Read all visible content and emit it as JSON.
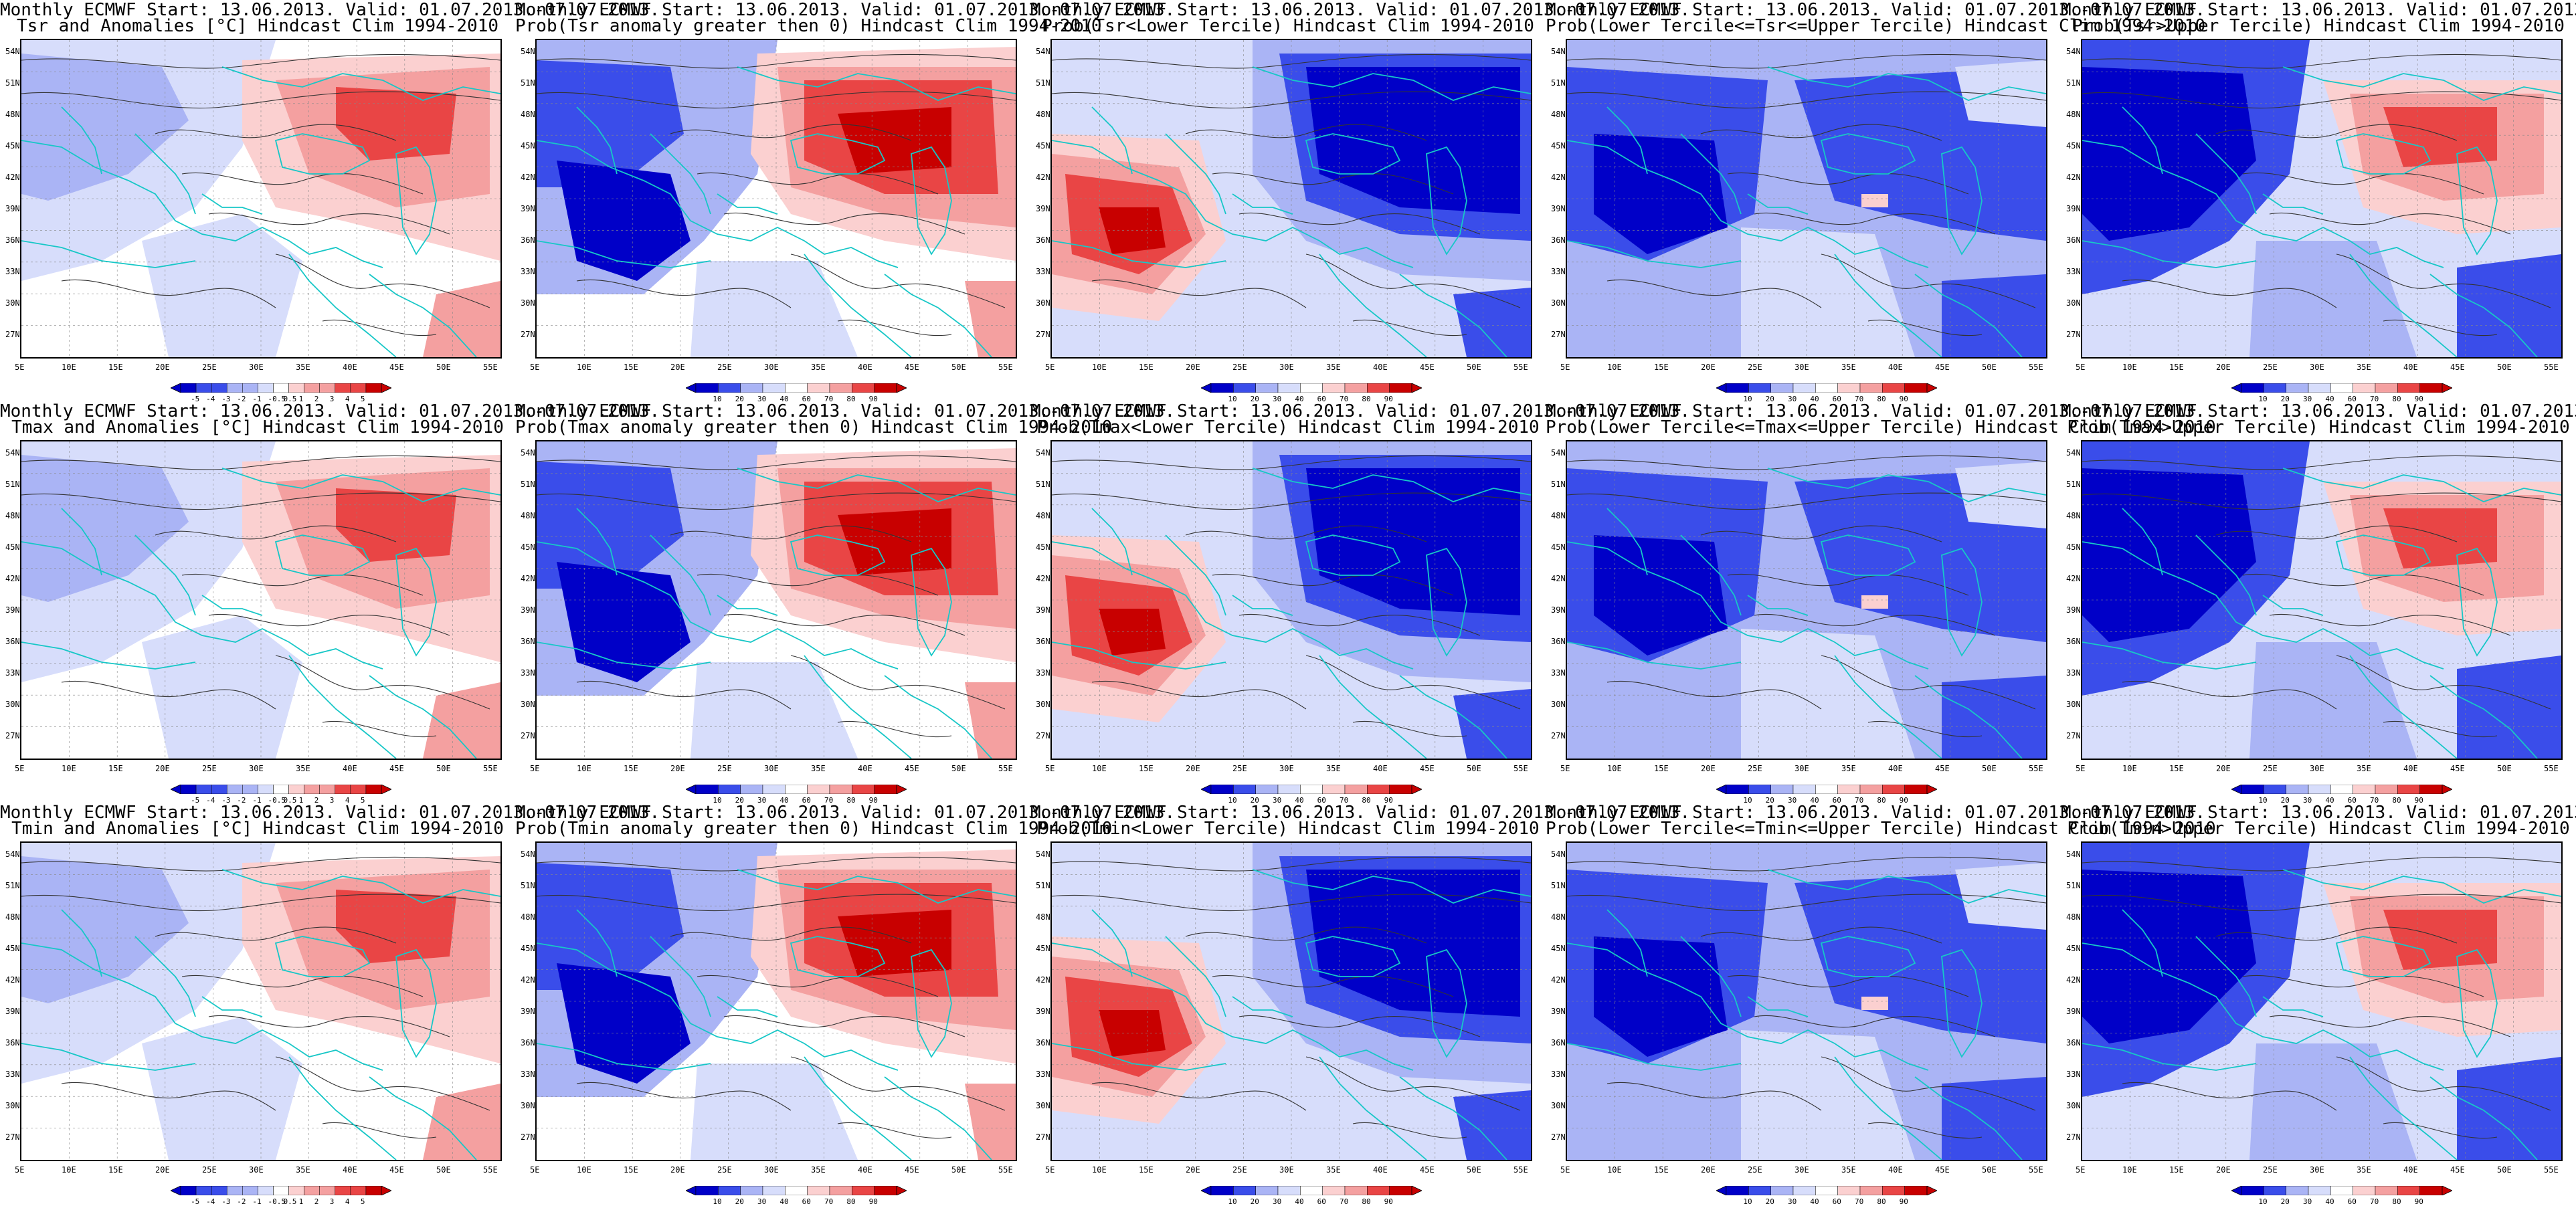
{
  "header_line": "Monthly ECMWF Start: 13.06.2013. Valid: 01.07.2013.-07.07.2013.",
  "lat_labels": [
    "54N",
    "51N",
    "48N",
    "45N",
    "42N",
    "39N",
    "36N",
    "33N",
    "30N",
    "27N"
  ],
  "lon_labels": [
    "5E",
    "10E",
    "15E",
    "20E",
    "25E",
    "30E",
    "35E",
    "40E",
    "45E",
    "50E",
    "55E"
  ],
  "anomaly_ticks": [
    "-5",
    "-4",
    "-3",
    "-2",
    "-1",
    "-0.5",
    "0.5",
    "1",
    "2",
    "3",
    "4",
    "5"
  ],
  "prob_ticks": [
    "10",
    "20",
    "30",
    "40",
    "60",
    "70",
    "80",
    "90"
  ],
  "colors": {
    "deep_blue": "#0000c8",
    "mid_blue": "#3a4dea",
    "light_blue": "#aab4f5",
    "pale_blue": "#d7ddfb",
    "pale_red": "#fbd0d0",
    "light_red": "#f4a0a0",
    "mid_red": "#e94545",
    "deep_red": "#c80000",
    "coast": "#17c7c7",
    "contour": "#333333"
  },
  "rows": [
    {
      "variable": "Tsr",
      "panels": [
        {
          "subtitle": "Tsr and Anomalies [°C] Hindcast Clim 1994-2010",
          "kind": "anomaly",
          "pattern": "anom"
        },
        {
          "subtitle": "Prob(Tsr anomaly greater then 0) Hindcast Clim 1994-2010",
          "kind": "prob",
          "pattern": "pos"
        },
        {
          "subtitle": "Prob(Tsr<Lower Tercile) Hindcast Clim 1994-2010",
          "kind": "prob",
          "pattern": "low"
        },
        {
          "subtitle": "Prob(Lower Tercile<=Tsr<=Upper Tercile) Hindcast Clim 1994-2010",
          "kind": "prob",
          "pattern": "mid"
        },
        {
          "subtitle": "Prob(Tsr>Upper Tercile) Hindcast Clim 1994-2010",
          "kind": "prob",
          "pattern": "up"
        }
      ]
    },
    {
      "variable": "Tmax",
      "panels": [
        {
          "subtitle": "Tmax and Anomalies [°C] Hindcast Clim 1994-2010",
          "kind": "anomaly",
          "pattern": "anom"
        },
        {
          "subtitle": "Prob(Tmax anomaly greater then 0) Hindcast Clim 1994-2010",
          "kind": "prob",
          "pattern": "pos"
        },
        {
          "subtitle": "Prob(Tmax<Lower Tercile) Hindcast Clim 1994-2010",
          "kind": "prob",
          "pattern": "low"
        },
        {
          "subtitle": "Prob(Lower Tercile<=Tmax<=Upper Tercile) Hindcast Clim 1994-2010",
          "kind": "prob",
          "pattern": "mid"
        },
        {
          "subtitle": "Prob(Tmax>Upper Tercile) Hindcast Clim 1994-2010",
          "kind": "prob",
          "pattern": "up"
        }
      ]
    },
    {
      "variable": "Tmin",
      "panels": [
        {
          "subtitle": "Tmin and Anomalies [°C] Hindcast Clim 1994-2010",
          "kind": "anomaly",
          "pattern": "anom"
        },
        {
          "subtitle": "Prob(Tmin anomaly greater then 0) Hindcast Clim 1994-2010",
          "kind": "prob",
          "pattern": "pos"
        },
        {
          "subtitle": "Prob(Tmin<Lower Tercile) Hindcast Clim 1994-2010",
          "kind": "prob",
          "pattern": "low"
        },
        {
          "subtitle": "Prob(Lower Tercile<=Tmin<=Upper Tercile) Hindcast Clim 1994-2010",
          "kind": "prob",
          "pattern": "mid"
        },
        {
          "subtitle": "Prob(Tmin>Upper Tercile) Hindcast Clim 1994-2010",
          "kind": "prob",
          "pattern": "up"
        }
      ]
    }
  ]
}
